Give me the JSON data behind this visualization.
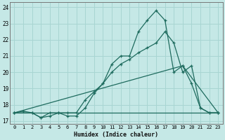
{
  "xlabel": "Humidex (Indice chaleur)",
  "xlim": [
    -0.5,
    23.5
  ],
  "ylim": [
    16.8,
    24.3
  ],
  "yticks": [
    17,
    18,
    19,
    20,
    21,
    22,
    23,
    24
  ],
  "xticks": [
    0,
    1,
    2,
    3,
    4,
    5,
    6,
    7,
    8,
    9,
    10,
    11,
    12,
    13,
    14,
    15,
    16,
    17,
    18,
    19,
    20,
    21,
    22,
    23
  ],
  "bg_color": "#c5e8e6",
  "grid_color": "#a8d5d2",
  "line_color": "#1e6b5e",
  "line1_x": [
    0,
    1,
    2,
    3,
    4,
    5,
    6,
    7,
    8,
    9,
    10,
    11,
    12,
    13,
    14,
    15,
    16,
    17,
    18,
    19,
    20,
    21,
    22,
    23
  ],
  "line1_y": [
    17.5,
    17.6,
    17.5,
    17.2,
    17.3,
    17.5,
    17.3,
    17.3,
    17.8,
    18.7,
    19.3,
    20.5,
    21.0,
    21.0,
    22.5,
    23.2,
    23.8,
    23.2,
    20.0,
    20.4,
    19.3,
    17.8,
    17.5,
    17.5
  ],
  "line2_x": [
    0,
    2,
    3,
    4,
    5,
    6,
    7,
    8,
    9,
    10,
    11,
    12,
    13,
    14,
    15,
    16,
    17,
    18,
    19,
    20,
    21,
    22,
    23
  ],
  "line2_y": [
    17.5,
    17.5,
    17.2,
    17.5,
    17.5,
    17.5,
    17.5,
    18.3,
    18.8,
    19.3,
    20.0,
    20.5,
    20.8,
    21.2,
    21.5,
    21.8,
    22.5,
    21.8,
    20.0,
    20.4,
    17.8,
    17.5,
    17.5
  ],
  "line3_x": [
    0,
    23
  ],
  "line3_y": [
    17.5,
    17.5
  ],
  "line4_x": [
    0,
    19,
    23
  ],
  "line4_y": [
    17.5,
    20.4,
    17.5
  ]
}
